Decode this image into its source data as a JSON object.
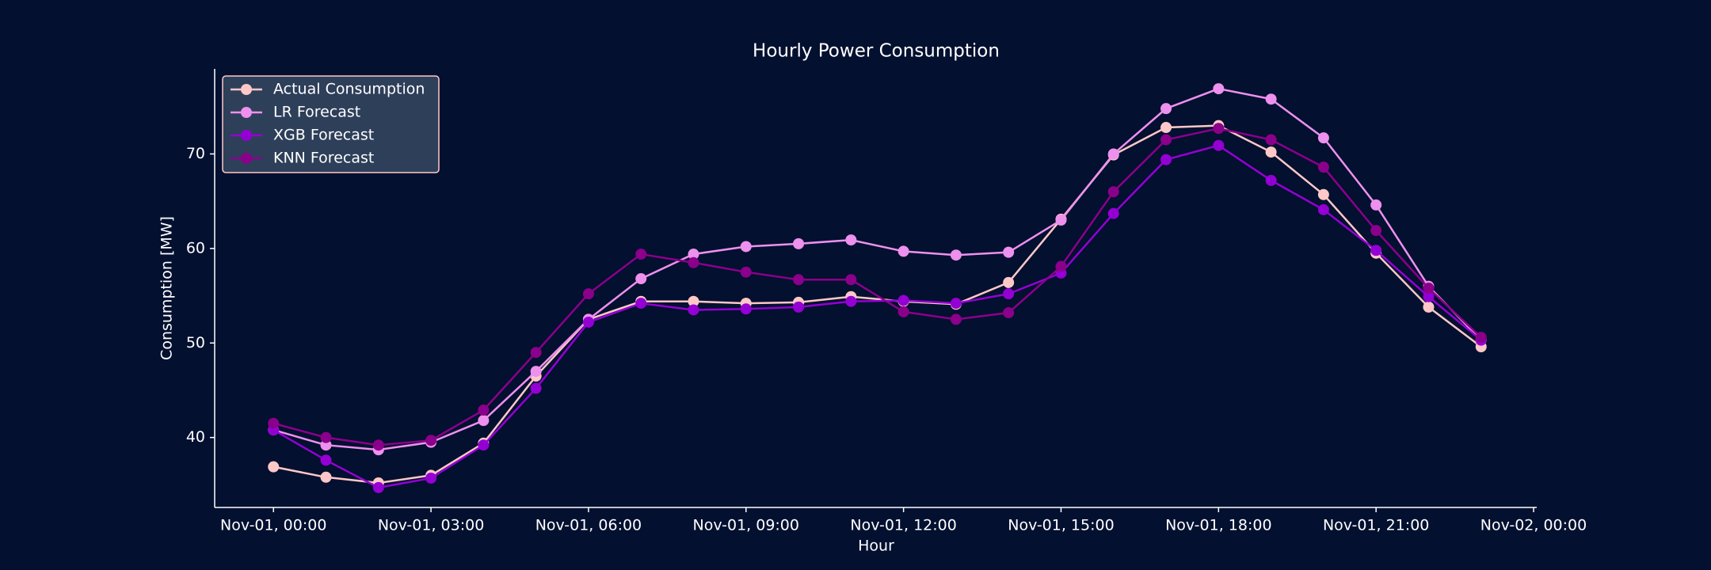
{
  "chart_data": {
    "type": "line",
    "title": "Hourly Power Consumption",
    "x_label": "Hour",
    "y_label": "Consumption [MW]",
    "x": [
      0,
      1,
      2,
      3,
      4,
      5,
      6,
      7,
      8,
      9,
      10,
      11,
      12,
      13,
      14,
      15,
      16,
      17,
      18,
      19,
      20,
      21,
      22,
      23
    ],
    "xlim": [
      -1.12,
      24.06
    ],
    "xticks": [
      {
        "value": 0,
        "label": "Nov-01, 00:00"
      },
      {
        "value": 3,
        "label": "Nov-01, 03:00"
      },
      {
        "value": 6,
        "label": "Nov-01, 06:00"
      },
      {
        "value": 9,
        "label": "Nov-01, 09:00"
      },
      {
        "value": 12,
        "label": "Nov-01, 12:00"
      },
      {
        "value": 15,
        "label": "Nov-01, 15:00"
      },
      {
        "value": 18,
        "label": "Nov-01, 18:00"
      },
      {
        "value": 21,
        "label": "Nov-01, 21:00"
      },
      {
        "value": 24,
        "label": "Nov-02, 00:00"
      }
    ],
    "ylim": [
      32.6,
      79
    ],
    "yticks": [
      40,
      50,
      60,
      70
    ],
    "grid": false,
    "legend": "upper left",
    "series": [
      {
        "name": "Actual Consumption",
        "color": "#ffc8c8",
        "values": [
          36.9,
          35.8,
          35.2,
          36.0,
          39.4,
          46.5,
          52.5,
          54.4,
          54.4,
          54.2,
          54.3,
          54.9,
          54.4,
          54.1,
          56.4,
          63.1,
          69.9,
          72.8,
          73.0,
          70.2,
          65.7,
          59.5,
          53.8,
          49.6
        ]
      },
      {
        "name": "LR Forecast",
        "color": "#ee90ee",
        "values": [
          40.8,
          39.2,
          38.7,
          39.5,
          41.8,
          47.0,
          52.5,
          56.8,
          59.4,
          60.2,
          60.5,
          60.9,
          59.7,
          59.3,
          59.6,
          63.0,
          70.0,
          74.8,
          76.9,
          75.8,
          71.7,
          64.6,
          56.0,
          50.3
        ]
      },
      {
        "name": "XGB Forecast",
        "color": "#9400d3",
        "values": [
          40.8,
          37.6,
          34.7,
          35.7,
          39.2,
          45.2,
          52.2,
          54.2,
          53.5,
          53.6,
          53.8,
          54.4,
          54.5,
          54.2,
          55.2,
          57.4,
          63.7,
          69.4,
          70.9,
          67.2,
          64.1,
          59.8,
          54.9,
          50.3
        ]
      },
      {
        "name": "KNN Forecast",
        "color": "#8b008b",
        "values": [
          41.5,
          40.0,
          39.2,
          39.7,
          42.9,
          49.0,
          55.2,
          59.4,
          58.5,
          57.5,
          56.7,
          56.7,
          53.3,
          52.5,
          53.2,
          58.1,
          66.0,
          71.5,
          72.7,
          71.5,
          68.6,
          61.9,
          55.8,
          50.6
        ]
      }
    ]
  }
}
